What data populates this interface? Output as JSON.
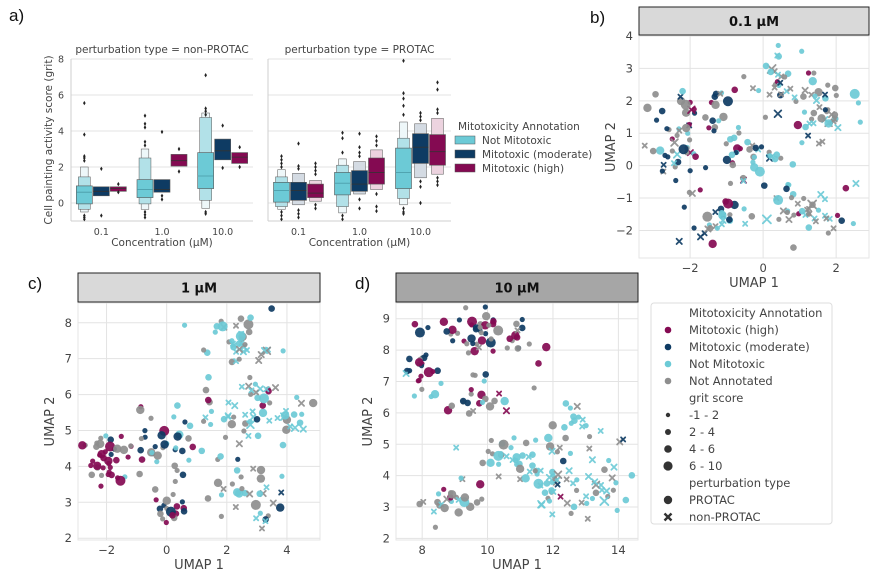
{
  "panel_labels": {
    "a": "a)",
    "b": "b)",
    "c": "c)",
    "d": "d)"
  },
  "colors": {
    "not_mitotoxic": "#6ccad6",
    "not_mitotoxic_light": "#b2e1e8",
    "moderate": "#0e3b63",
    "moderate_light": "#d4dbe3",
    "high": "#840a52",
    "high_light": "#ecd3df",
    "not_annotated": "#8e8e8e",
    "facet_header_light": "#d9d9d9",
    "facet_header_dark": "#a6a6a6",
    "grid": "#e3e3e3"
  },
  "chart_data": [
    {
      "id": "a",
      "type": "boxen",
      "ylabel": "Cell painting activity score (grit)",
      "xlabel": "Concentration  (µM)",
      "ylim": [
        -1,
        8
      ],
      "yticks": [
        0,
        2,
        4,
        6,
        8
      ],
      "categories": [
        "0.1",
        "1.0",
        "10.0"
      ],
      "legend": {
        "title": "Mitotoxicity Annotation",
        "entries": [
          "Not Mitotoxic",
          "Mitotoxic (moderate)",
          "Mitotoxic (high)"
        ],
        "placement": "right"
      },
      "facets": [
        {
          "title": "perturbation type = non-PROTAC",
          "groups": [
            {
              "cat": "0.1",
              "series": "Not Mitotoxic",
              "q1": -0.05,
              "median": 0.6,
              "q3": 0.95,
              "levels": [
                [
                  -0.35,
                  1.45
                ],
                [
                  -0.5,
                  2.0
                ]
              ],
              "outliers": [
                5.55,
                3.8,
                2.6,
                2.5,
                2.35,
                -0.7,
                -0.8,
                -0.9
              ]
            },
            {
              "cat": "0.1",
              "series": "Mitotoxic (moderate)",
              "q1": 0.4,
              "median": 0.65,
              "q3": 0.9,
              "levels": [],
              "outliers": [
                1.9,
                -0.7
              ]
            },
            {
              "cat": "0.1",
              "series": "Mitotoxic (high)",
              "q1": 0.65,
              "median": 0.8,
              "q3": 0.9,
              "levels": [],
              "outliers": [
                1.05,
                0.6
              ]
            },
            {
              "cat": "1.0",
              "series": "Not Mitotoxic",
              "q1": 0.3,
              "median": 0.75,
              "q3": 1.3,
              "levels": [
                [
                  -0.05,
                  2.5
                ],
                [
                  -0.35,
                  3.0
                ]
              ],
              "outliers": [
                4.85,
                4.4,
                4.2,
                3.4,
                3.2,
                -0.5,
                -0.65,
                -0.8
              ]
            },
            {
              "cat": "1.0",
              "series": "Mitotoxic (moderate)",
              "q1": 0.6,
              "median": 0.75,
              "q3": 1.3,
              "levels": [],
              "outliers": [
                3.95,
                0.4,
                0.2
              ]
            },
            {
              "cat": "1.0",
              "series": "Mitotoxic (high)",
              "q1": 2.05,
              "median": 2.35,
              "q3": 2.7,
              "levels": [],
              "outliers": [
                3.0,
                1.75
              ]
            },
            {
              "cat": "10.0",
              "series": "Not Mitotoxic",
              "q1": 0.8,
              "median": 1.5,
              "q3": 2.8,
              "levels": [
                [
                  0.15,
                  4.75
                ],
                [
                  -0.3,
                  5.0
                ]
              ],
              "outliers": [
                7.1,
                5.25,
                5.1,
                4.9,
                -0.5,
                -0.6
              ]
            },
            {
              "cat": "10.0",
              "series": "Mitotoxic (moderate)",
              "q1": 2.4,
              "median": 2.9,
              "q3": 3.55,
              "levels": [],
              "outliers": [
                4.3,
                1.95
              ]
            },
            {
              "cat": "10.0",
              "series": "Mitotoxic (high)",
              "q1": 2.2,
              "median": 2.55,
              "q3": 2.8,
              "levels": [],
              "outliers": [
                3.1,
                2.0
              ]
            }
          ]
        },
        {
          "title": "perturbation type = PROTAC",
          "groups": [
            {
              "cat": "0.1",
              "series": "Not Mitotoxic",
              "q1": 0.05,
              "median": 0.7,
              "q3": 1.15,
              "levels": [
                [
                  -0.2,
                  1.45
                ],
                [
                  -0.35,
                  1.85
                ]
              ],
              "outliers": [
                2.6,
                2.4,
                2.2,
                2.0,
                -0.5,
                -0.7,
                -0.9
              ]
            },
            {
              "cat": "0.1",
              "series": "Mitotoxic (moderate)",
              "q1": 0.15,
              "median": 0.7,
              "q3": 1.15,
              "levels": [
                [
                  -0.1,
                  1.65
                ]
              ],
              "outliers": [
                3.3,
                2.05,
                1.9,
                -0.4,
                -0.6,
                -0.8
              ]
            },
            {
              "cat": "0.1",
              "series": "Mitotoxic (high)",
              "q1": 0.3,
              "median": 0.55,
              "q3": 1.05,
              "levels": [
                [
                  0.1,
                  1.25
                ]
              ],
              "outliers": [
                2.2,
                2.0,
                1.8,
                1.6,
                -0.1,
                -0.3
              ]
            },
            {
              "cat": "1.0",
              "series": "Not Mitotoxic",
              "q1": 0.45,
              "median": 1.1,
              "q3": 1.7,
              "levels": [
                [
                  -0.2,
                  2.1
                ],
                [
                  -0.55,
                  2.45
                ]
              ],
              "outliers": [
                3.9,
                3.6,
                2.8,
                -0.7,
                -0.9
              ]
            },
            {
              "cat": "1.0",
              "series": "Mitotoxic (moderate)",
              "q1": 0.65,
              "median": 1.05,
              "q3": 1.8,
              "levels": [
                [
                  0.5,
                  2.3
                ]
              ],
              "outliers": [
                3.85,
                3.1,
                2.8,
                2.6,
                0.2,
                -0.3
              ]
            },
            {
              "cat": "1.0",
              "series": "Mitotoxic (high)",
              "q1": 1.05,
              "median": 1.7,
              "q3": 2.5,
              "levels": [
                [
                  0.75,
                  2.95
                ]
              ],
              "outliers": [
                3.7,
                3.45,
                3.2,
                0.5,
                -0.2,
                -0.45
              ]
            },
            {
              "cat": "10.0",
              "series": "Not Mitotoxic",
              "q1": 0.8,
              "median": 1.7,
              "q3": 3.05,
              "levels": [
                [
                  0.25,
                  3.6
                ],
                [
                  -0.1,
                  4.5
                ]
              ],
              "outliers": [
                7.9,
                6.1,
                5.8,
                5.4,
                4.9,
                -0.3,
                -0.5,
                -0.6
              ]
            },
            {
              "cat": "10.0",
              "series": "Mitotoxic (moderate)",
              "q1": 2.2,
              "median": 3.1,
              "q3": 3.85,
              "levels": [
                [
                  1.4,
                  4.4
                ]
              ],
              "outliers": [
                5.0,
                4.8,
                4.6,
                1.2,
                0.9,
                0.0
              ]
            },
            {
              "cat": "10.0",
              "series": "Mitotoxic (high)",
              "q1": 2.1,
              "median": 2.85,
              "q3": 3.8,
              "levels": [
                [
                  1.6,
                  4.7
                ]
              ],
              "outliers": [
                6.7,
                6.3,
                5.2,
                5.0,
                1.4,
                1.2,
                1.0
              ]
            }
          ]
        }
      ]
    },
    {
      "id": "b",
      "type": "scatter",
      "facet_title": "0.1 µM",
      "header_style": "light",
      "xlabel": "UMAP 1",
      "ylabel": "UMAP 2",
      "xlim": [
        -3.4,
        2.9
      ],
      "ylim": [
        -2.85,
        4.0
      ],
      "xticks": [
        -2,
        0,
        2
      ],
      "yticks": [
        -2,
        -1,
        0,
        1,
        2,
        3,
        4
      ],
      "show_xlabel": true,
      "show_ylabel": true,
      "clusters": [
        {
          "cx": -1.6,
          "cy": 1.4,
          "rx": 1.2,
          "ry": 0.9,
          "n": 40,
          "mix": [
            0.35,
            0.3,
            0.15,
            0.2
          ],
          "cross": 0.1
        },
        {
          "cx": -2.4,
          "cy": 0.2,
          "rx": 0.8,
          "ry": 1.1,
          "n": 28,
          "mix": [
            0.15,
            0.2,
            0.4,
            0.25
          ],
          "cross": 0.3
        },
        {
          "cx": -1.0,
          "cy": -1.6,
          "rx": 1.2,
          "ry": 0.6,
          "n": 30,
          "mix": [
            0.1,
            0.2,
            0.4,
            0.3
          ],
          "cross": 0.25
        },
        {
          "cx": -0.3,
          "cy": 0.3,
          "rx": 1.0,
          "ry": 1.0,
          "n": 38,
          "mix": [
            0.1,
            0.25,
            0.35,
            0.3
          ],
          "cross": 0.2
        },
        {
          "cx": 0.5,
          "cy": 2.6,
          "rx": 0.8,
          "ry": 0.9,
          "n": 32,
          "mix": [
            0.05,
            0.15,
            0.35,
            0.45
          ],
          "cross": 0.45
        },
        {
          "cx": 1.6,
          "cy": 1.5,
          "rx": 1.0,
          "ry": 1.0,
          "n": 40,
          "mix": [
            0.05,
            0.1,
            0.45,
            0.4
          ],
          "cross": 0.4
        },
        {
          "cx": 1.3,
          "cy": -1.3,
          "rx": 1.2,
          "ry": 1.0,
          "n": 40,
          "mix": [
            0.05,
            0.15,
            0.4,
            0.4
          ],
          "cross": 0.45
        }
      ]
    },
    {
      "id": "c",
      "type": "scatter",
      "facet_title": "1 µM",
      "header_style": "light",
      "xlabel": "UMAP 1",
      "ylabel": "UMAP 2",
      "xlim": [
        -2.95,
        5.1
      ],
      "ylim": [
        1.95,
        8.55
      ],
      "xticks": [
        -2,
        0,
        2,
        4
      ],
      "yticks": [
        2,
        3,
        4,
        5,
        6,
        7,
        8
      ],
      "show_xlabel": true,
      "show_ylabel": true,
      "clusters": [
        {
          "cx": -1.9,
          "cy": 4.3,
          "rx": 0.7,
          "ry": 0.7,
          "n": 40,
          "mix": [
            0.45,
            0.15,
            0.1,
            0.3
          ],
          "cross": 0.05
        },
        {
          "cx": 0.0,
          "cy": 2.8,
          "rx": 0.6,
          "ry": 0.4,
          "n": 18,
          "mix": [
            0.45,
            0.15,
            0.1,
            0.3
          ],
          "cross": 0.0
        },
        {
          "cx": -0.2,
          "cy": 4.6,
          "rx": 1.0,
          "ry": 1.0,
          "n": 34,
          "mix": [
            0.1,
            0.4,
            0.2,
            0.3
          ],
          "cross": 0.05
        },
        {
          "cx": 2.4,
          "cy": 7.5,
          "rx": 1.2,
          "ry": 0.7,
          "n": 40,
          "mix": [
            0.0,
            0.05,
            0.5,
            0.45
          ],
          "cross": 0.45
        },
        {
          "cx": 2.6,
          "cy": 5.4,
          "rx": 1.6,
          "ry": 1.1,
          "n": 60,
          "mix": [
            0.03,
            0.07,
            0.5,
            0.4
          ],
          "cross": 0.4
        },
        {
          "cx": 2.6,
          "cy": 3.1,
          "rx": 1.2,
          "ry": 0.7,
          "n": 30,
          "mix": [
            0.0,
            0.1,
            0.45,
            0.45
          ],
          "cross": 0.45
        },
        {
          "cx": 4.2,
          "cy": 5.3,
          "rx": 0.5,
          "ry": 0.4,
          "n": 10,
          "mix": [
            0.0,
            0.0,
            0.9,
            0.1
          ],
          "cross": 0.5
        }
      ]
    },
    {
      "id": "d",
      "type": "scatter",
      "facet_title": "10 µM",
      "header_style": "dark",
      "xlabel": "UMAP 1",
      "ylabel": "UMAP 2",
      "xlim": [
        7.2,
        14.6
      ],
      "ylim": [
        1.95,
        9.5
      ],
      "xticks": [
        8,
        10,
        12,
        14
      ],
      "yticks": [
        2,
        3,
        4,
        5,
        6,
        7,
        8,
        9
      ],
      "show_xlabel": true,
      "show_ylabel": true,
      "clusters": [
        {
          "cx": 9.8,
          "cy": 8.5,
          "rx": 1.2,
          "ry": 0.8,
          "n": 55,
          "mix": [
            0.3,
            0.3,
            0.05,
            0.35
          ],
          "cross": 0.08
        },
        {
          "cx": 8.0,
          "cy": 7.2,
          "rx": 0.5,
          "ry": 0.8,
          "n": 22,
          "mix": [
            0.25,
            0.35,
            0.15,
            0.25
          ],
          "cross": 0.1
        },
        {
          "cx": 9.6,
          "cy": 6.5,
          "rx": 1.1,
          "ry": 0.7,
          "n": 24,
          "mix": [
            0.2,
            0.2,
            0.2,
            0.4
          ],
          "cross": 0.15
        },
        {
          "cx": 9.0,
          "cy": 3.2,
          "rx": 0.9,
          "ry": 0.7,
          "n": 26,
          "mix": [
            0.1,
            0.0,
            0.3,
            0.6
          ],
          "cross": 0.25
        },
        {
          "cx": 10.6,
          "cy": 4.7,
          "rx": 1.0,
          "ry": 0.6,
          "n": 22,
          "mix": [
            0.0,
            0.0,
            0.7,
            0.3
          ],
          "cross": 0.2
        },
        {
          "cx": 12.4,
          "cy": 4.0,
          "rx": 1.6,
          "ry": 1.3,
          "n": 80,
          "mix": [
            0.02,
            0.03,
            0.55,
            0.4
          ],
          "cross": 0.45
        },
        {
          "cx": 12.7,
          "cy": 5.8,
          "rx": 0.6,
          "ry": 0.5,
          "n": 12,
          "mix": [
            0.0,
            0.0,
            0.6,
            0.4
          ],
          "cross": 0.4
        }
      ]
    }
  ],
  "scatter_legend": {
    "sections": [
      {
        "title": "Mitotoxicity Annotation",
        "entries": [
          {
            "label": "Mitotoxic (high)",
            "marker": "dot",
            "color": "high"
          },
          {
            "label": "Mitotoxic (moderate)",
            "marker": "dot",
            "color": "moderate"
          },
          {
            "label": "Not Mitotoxic",
            "marker": "dot",
            "color": "not_mitotoxic"
          },
          {
            "label": "Not Annotated",
            "marker": "dot",
            "color": "not_annotated"
          }
        ]
      },
      {
        "title": "grit score",
        "entries": [
          {
            "label": "-1 - 2",
            "marker": "size",
            "size": 1
          },
          {
            "label": "2 - 4",
            "marker": "size",
            "size": 2
          },
          {
            "label": "4 - 6",
            "marker": "size",
            "size": 3
          },
          {
            "label": "6 - 10",
            "marker": "size",
            "size": 4
          }
        ]
      },
      {
        "title": "perturbation type",
        "entries": [
          {
            "label": "PROTAC",
            "marker": "circle"
          },
          {
            "label": "non-PROTAC",
            "marker": "cross"
          }
        ]
      }
    ]
  }
}
